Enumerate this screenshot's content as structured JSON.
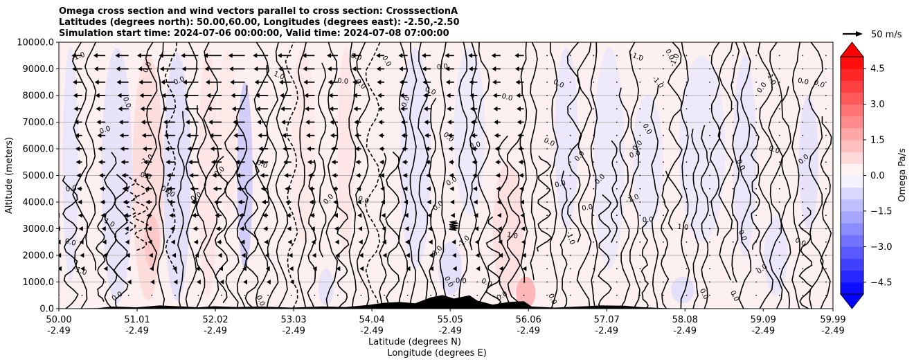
{
  "chart_data": {
    "type": "contourf",
    "title_lines": [
      "Omega cross section and wind vectors parallel to cross section: CrosssectionA",
      "Latitudes (degrees north): 50.00,60.00, Longitudes (degrees east): -2.50,-2.50",
      "Simulation start time: 2024-07-06 00:00:00, Valid time: 2024-07-08 07:00:00"
    ],
    "ylabel": "Altitude (meters)",
    "xlabel_lines": [
      "Latitude (degrees N)",
      "Longitude (degrees E)"
    ],
    "x_tick_labels": [
      {
        "lat": "50.00",
        "lon": "-2.49"
      },
      {
        "lat": "51.01",
        "lon": "-2.49"
      },
      {
        "lat": "52.02",
        "lon": "-2.49"
      },
      {
        "lat": "53.03",
        "lon": "-2.49"
      },
      {
        "lat": "54.04",
        "lon": "-2.49"
      },
      {
        "lat": "55.05",
        "lon": "-2.49"
      },
      {
        "lat": "56.06",
        "lon": "-2.49"
      },
      {
        "lat": "57.07",
        "lon": "-2.49"
      },
      {
        "lat": "58.08",
        "lon": "-2.49"
      },
      {
        "lat": "59.09",
        "lon": "-2.49"
      },
      {
        "lat": "59.99",
        "lon": "-2.49"
      }
    ],
    "x_tick_values": [
      50.0,
      51.01,
      52.02,
      53.03,
      54.04,
      55.05,
      56.06,
      57.07,
      58.08,
      59.09,
      59.99
    ],
    "xlim": [
      50.0,
      59.99
    ],
    "y_ticks": [
      0,
      1000,
      2000,
      3000,
      4000,
      5000,
      6000,
      7000,
      8000,
      9000,
      10000
    ],
    "y_tick_labels": [
      "0.0",
      "1000.0",
      "2000.0",
      "3000.0",
      "4000.0",
      "5000.0",
      "6000.0",
      "7000.0",
      "8000.0",
      "9000.0",
      "10000.0"
    ],
    "ylim": [
      0,
      10000
    ],
    "grid": "horizontal",
    "colorbar": {
      "label": "Omega Pa/s",
      "ticks": [
        4.5,
        3.0,
        1.5,
        0.0,
        -1.5,
        -3.0,
        -4.5
      ],
      "tick_labels": [
        "4.5",
        "3.0",
        "1.5",
        "0.0",
        "−1.5",
        "−3.0",
        "−4.5"
      ],
      "range": [
        -5.0,
        5.0
      ],
      "step": 0.5,
      "colormap": "bwr",
      "extend": "both"
    },
    "quiver_key": {
      "label": "50 m/s",
      "speed": 50
    },
    "contour_labels": [
      "0.0",
      "-1.0",
      "1.0"
    ],
    "terrain_peak_altitude_m": 500,
    "wind_direction": "southward (negative), strongest aloft between 51 and 54 degrees N"
  },
  "colors": {
    "positive": "#ff0000",
    "negative": "#0000ff",
    "background_field": "#fdf0f0",
    "terrain": "#000000"
  }
}
